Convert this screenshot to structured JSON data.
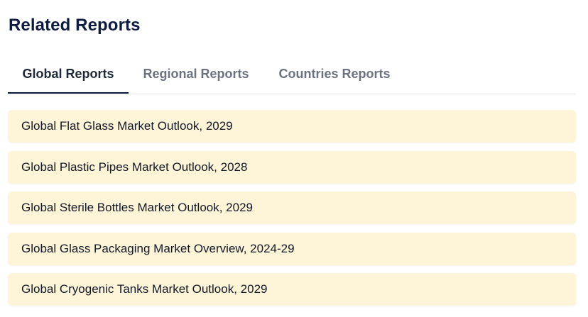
{
  "section": {
    "title": "Related Reports"
  },
  "tabs": [
    {
      "label": "Global Reports",
      "active": true
    },
    {
      "label": "Regional Reports",
      "active": false
    },
    {
      "label": "Countries Reports",
      "active": false
    }
  ],
  "reports": [
    {
      "label": "Global Flat Glass Market Outlook, 2029"
    },
    {
      "label": "Global Plastic Pipes Market Outlook, 2028"
    },
    {
      "label": "Global Sterile Bottles Market Outlook, 2029"
    },
    {
      "label": "Global Glass Packaging Market Overview, 2024-29"
    },
    {
      "label": "Global Cryogenic Tanks Market Outlook, 2029"
    }
  ],
  "colors": {
    "title": "#0d1b3e",
    "active_tab_text": "#1f2937",
    "inactive_tab_text": "#6b7280",
    "active_tab_underline": "#0d1b3e",
    "report_item_background": "#fef4d8",
    "report_item_text": "#111827"
  }
}
